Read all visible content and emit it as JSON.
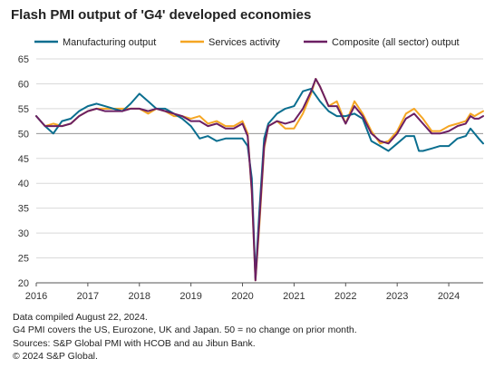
{
  "chart_data": {
    "type": "line",
    "title": "Flash PMI output of 'G4' developed economies",
    "xlabel": "",
    "ylabel": "",
    "ylim": [
      20,
      65
    ],
    "yticks": [
      20,
      25,
      30,
      35,
      40,
      45,
      50,
      55,
      60,
      65
    ],
    "xlim": [
      2016.0,
      2024.667
    ],
    "xticks": [
      2016,
      2017,
      2018,
      2019,
      2020,
      2021,
      2022,
      2023,
      2024
    ],
    "reference_line": 50,
    "grid": "horizontal",
    "legend_position": "top",
    "series": [
      {
        "name": "Manufacturing output",
        "color": "#0a6e8f",
        "points": [
          [
            2016.0,
            53.5
          ],
          [
            2016.17,
            51.5
          ],
          [
            2016.33,
            50.0
          ],
          [
            2016.5,
            52.5
          ],
          [
            2016.67,
            53.0
          ],
          [
            2016.83,
            54.5
          ],
          [
            2017.0,
            55.5
          ],
          [
            2017.17,
            56.0
          ],
          [
            2017.33,
            55.5
          ],
          [
            2017.5,
            55.0
          ],
          [
            2017.67,
            54.5
          ],
          [
            2017.83,
            56.0
          ],
          [
            2018.0,
            58.0
          ],
          [
            2018.17,
            56.5
          ],
          [
            2018.33,
            55.0
          ],
          [
            2018.5,
            55.0
          ],
          [
            2018.67,
            54.0
          ],
          [
            2018.83,
            53.0
          ],
          [
            2019.0,
            51.5
          ],
          [
            2019.17,
            49.0
          ],
          [
            2019.33,
            49.5
          ],
          [
            2019.5,
            48.5
          ],
          [
            2019.67,
            49.0
          ],
          [
            2019.83,
            49.0
          ],
          [
            2020.0,
            49.0
          ],
          [
            2020.1,
            47.5
          ],
          [
            2020.18,
            41.0
          ],
          [
            2020.25,
            21.0
          ],
          [
            2020.33,
            35.0
          ],
          [
            2020.42,
            49.0
          ],
          [
            2020.5,
            52.0
          ],
          [
            2020.67,
            54.0
          ],
          [
            2020.83,
            55.0
          ],
          [
            2021.0,
            55.5
          ],
          [
            2021.17,
            58.5
          ],
          [
            2021.33,
            59.0
          ],
          [
            2021.5,
            56.5
          ],
          [
            2021.67,
            54.5
          ],
          [
            2021.83,
            53.5
          ],
          [
            2022.0,
            53.5
          ],
          [
            2022.17,
            54.0
          ],
          [
            2022.33,
            53.0
          ],
          [
            2022.5,
            48.5
          ],
          [
            2022.67,
            47.5
          ],
          [
            2022.83,
            46.5
          ],
          [
            2023.0,
            48.0
          ],
          [
            2023.17,
            49.5
          ],
          [
            2023.33,
            49.5
          ],
          [
            2023.42,
            46.5
          ],
          [
            2023.5,
            46.5
          ],
          [
            2023.67,
            47.0
          ],
          [
            2023.83,
            47.5
          ],
          [
            2024.0,
            47.5
          ],
          [
            2024.17,
            49.0
          ],
          [
            2024.33,
            49.5
          ],
          [
            2024.42,
            51.0
          ],
          [
            2024.5,
            50.0
          ],
          [
            2024.58,
            49.0
          ],
          [
            2024.667,
            48.0
          ]
        ]
      },
      {
        "name": "Services activity",
        "color": "#f5a623",
        "points": [
          [
            2016.0,
            53.5
          ],
          [
            2016.17,
            51.5
          ],
          [
            2016.33,
            52.0
          ],
          [
            2016.5,
            51.5
          ],
          [
            2016.67,
            52.0
          ],
          [
            2016.83,
            53.5
          ],
          [
            2017.0,
            54.5
          ],
          [
            2017.17,
            55.0
          ],
          [
            2017.33,
            55.0
          ],
          [
            2017.5,
            55.0
          ],
          [
            2017.67,
            55.0
          ],
          [
            2017.83,
            55.0
          ],
          [
            2018.0,
            55.0
          ],
          [
            2018.17,
            54.0
          ],
          [
            2018.33,
            55.0
          ],
          [
            2018.5,
            54.5
          ],
          [
            2018.67,
            53.5
          ],
          [
            2018.83,
            53.5
          ],
          [
            2019.0,
            53.0
          ],
          [
            2019.17,
            53.5
          ],
          [
            2019.33,
            52.0
          ],
          [
            2019.5,
            52.5
          ],
          [
            2019.67,
            51.5
          ],
          [
            2019.83,
            51.5
          ],
          [
            2020.0,
            52.5
          ],
          [
            2020.1,
            50.0
          ],
          [
            2020.18,
            38.0
          ],
          [
            2020.25,
            20.5
          ],
          [
            2020.33,
            32.0
          ],
          [
            2020.42,
            47.0
          ],
          [
            2020.5,
            51.5
          ],
          [
            2020.67,
            52.5
          ],
          [
            2020.83,
            51.0
          ],
          [
            2021.0,
            51.0
          ],
          [
            2021.17,
            54.0
          ],
          [
            2021.33,
            58.0
          ],
          [
            2021.42,
            61.0
          ],
          [
            2021.5,
            59.5
          ],
          [
            2021.67,
            55.5
          ],
          [
            2021.83,
            56.5
          ],
          [
            2022.0,
            52.0
          ],
          [
            2022.17,
            56.5
          ],
          [
            2022.33,
            54.0
          ],
          [
            2022.5,
            50.5
          ],
          [
            2022.67,
            48.0
          ],
          [
            2022.83,
            48.5
          ],
          [
            2023.0,
            50.5
          ],
          [
            2023.17,
            54.0
          ],
          [
            2023.33,
            55.0
          ],
          [
            2023.5,
            53.0
          ],
          [
            2023.67,
            50.5
          ],
          [
            2023.83,
            50.5
          ],
          [
            2024.0,
            51.5
          ],
          [
            2024.17,
            52.0
          ],
          [
            2024.33,
            52.5
          ],
          [
            2024.42,
            54.0
          ],
          [
            2024.5,
            53.5
          ],
          [
            2024.58,
            54.0
          ],
          [
            2024.667,
            54.5
          ]
        ]
      },
      {
        "name": "Composite (all sector) output",
        "color": "#6b1f63",
        "points": [
          [
            2016.0,
            53.5
          ],
          [
            2016.17,
            51.5
          ],
          [
            2016.33,
            51.5
          ],
          [
            2016.5,
            51.5
          ],
          [
            2016.67,
            52.0
          ],
          [
            2016.83,
            53.5
          ],
          [
            2017.0,
            54.5
          ],
          [
            2017.17,
            55.0
          ],
          [
            2017.33,
            54.5
          ],
          [
            2017.5,
            54.5
          ],
          [
            2017.67,
            54.5
          ],
          [
            2017.83,
            55.0
          ],
          [
            2018.0,
            55.0
          ],
          [
            2018.17,
            54.5
          ],
          [
            2018.33,
            55.0
          ],
          [
            2018.5,
            54.5
          ],
          [
            2018.67,
            54.0
          ],
          [
            2018.83,
            53.5
          ],
          [
            2019.0,
            52.5
          ],
          [
            2019.17,
            52.5
          ],
          [
            2019.33,
            51.5
          ],
          [
            2019.5,
            52.0
          ],
          [
            2019.67,
            51.0
          ],
          [
            2019.83,
            51.0
          ],
          [
            2020.0,
            52.0
          ],
          [
            2020.1,
            49.5
          ],
          [
            2020.18,
            38.5
          ],
          [
            2020.25,
            20.5
          ],
          [
            2020.33,
            33.0
          ],
          [
            2020.42,
            47.5
          ],
          [
            2020.5,
            51.5
          ],
          [
            2020.67,
            52.5
          ],
          [
            2020.83,
            52.0
          ],
          [
            2021.0,
            52.5
          ],
          [
            2021.17,
            55.0
          ],
          [
            2021.33,
            58.5
          ],
          [
            2021.42,
            61.0
          ],
          [
            2021.5,
            59.5
          ],
          [
            2021.67,
            55.5
          ],
          [
            2021.83,
            55.5
          ],
          [
            2022.0,
            52.0
          ],
          [
            2022.17,
            55.5
          ],
          [
            2022.33,
            53.5
          ],
          [
            2022.5,
            50.0
          ],
          [
            2022.67,
            48.5
          ],
          [
            2022.83,
            48.0
          ],
          [
            2023.0,
            50.0
          ],
          [
            2023.17,
            53.0
          ],
          [
            2023.33,
            54.0
          ],
          [
            2023.5,
            52.0
          ],
          [
            2023.67,
            50.0
          ],
          [
            2023.83,
            50.0
          ],
          [
            2024.0,
            50.5
          ],
          [
            2024.17,
            51.5
          ],
          [
            2024.33,
            52.0
          ],
          [
            2024.42,
            53.5
          ],
          [
            2024.5,
            53.0
          ],
          [
            2024.58,
            53.0
          ],
          [
            2024.667,
            53.5
          ]
        ]
      }
    ]
  },
  "notes": [
    "Data compiled August 22, 2024.",
    "G4 PMI covers the US, Eurozone, UK and Japan. 50 = no change on prior month.",
    "Sources: S&P Global PMI with HCOB and au Jibun Bank.",
    "© 2024 S&P Global."
  ]
}
